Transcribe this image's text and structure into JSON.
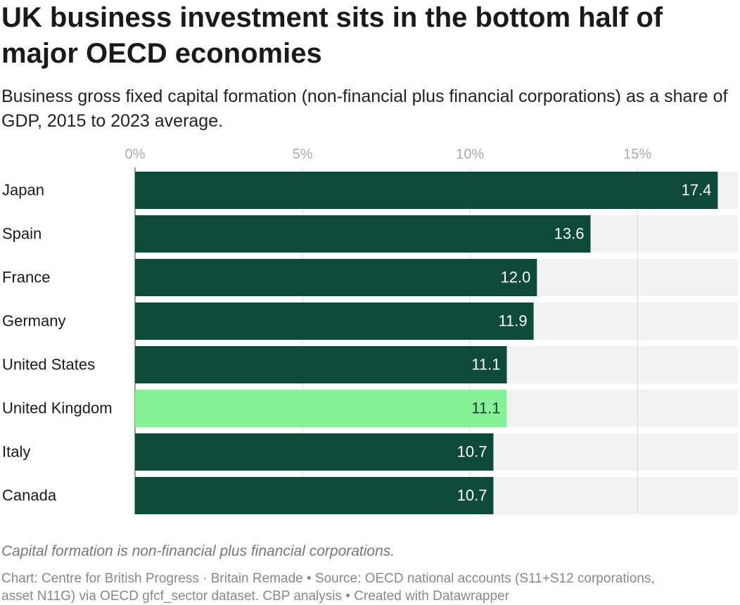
{
  "chart_data": {
    "type": "hbar",
    "title": "UK business investment sits in the bottom half of major OECD economies",
    "subtitle": "Business gross fixed capital formation (non-financial plus financial corporations) as a share of GDP, 2015 to 2023 average.",
    "categories": [
      "Japan",
      "Spain",
      "France",
      "Germany",
      "United States",
      "United Kingdom",
      "Italy",
      "Canada"
    ],
    "values": [
      17.4,
      13.6,
      12.0,
      11.9,
      11.1,
      11.1,
      10.7,
      10.7
    ],
    "value_labels": [
      "17.4",
      "13.6",
      "12.0",
      "11.9",
      "11.1",
      "11.1",
      "10.7",
      "10.7"
    ],
    "colors": [
      "#0d4a38",
      "#0d4a38",
      "#0d4a38",
      "#0d4a38",
      "#0d4a38",
      "#84f294",
      "#0d4a38",
      "#0d4a38"
    ],
    "xlim": [
      0,
      18
    ],
    "xticks": [
      {
        "value": 0,
        "label": "0%"
      },
      {
        "value": 5,
        "label": "5%"
      },
      {
        "value": 10,
        "label": "10%"
      },
      {
        "value": 15,
        "label": "15%"
      }
    ],
    "grid": true,
    "note": "Capital formation is non-financial plus financial corporations.",
    "source": "Chart: Centre for British Progress · Britain Remade • Source: OECD national accounts (S11+S12 corporations, asset N11G) via OECD gfcf_sector dataset. CBP analysis • Created with Datawrapper"
  }
}
